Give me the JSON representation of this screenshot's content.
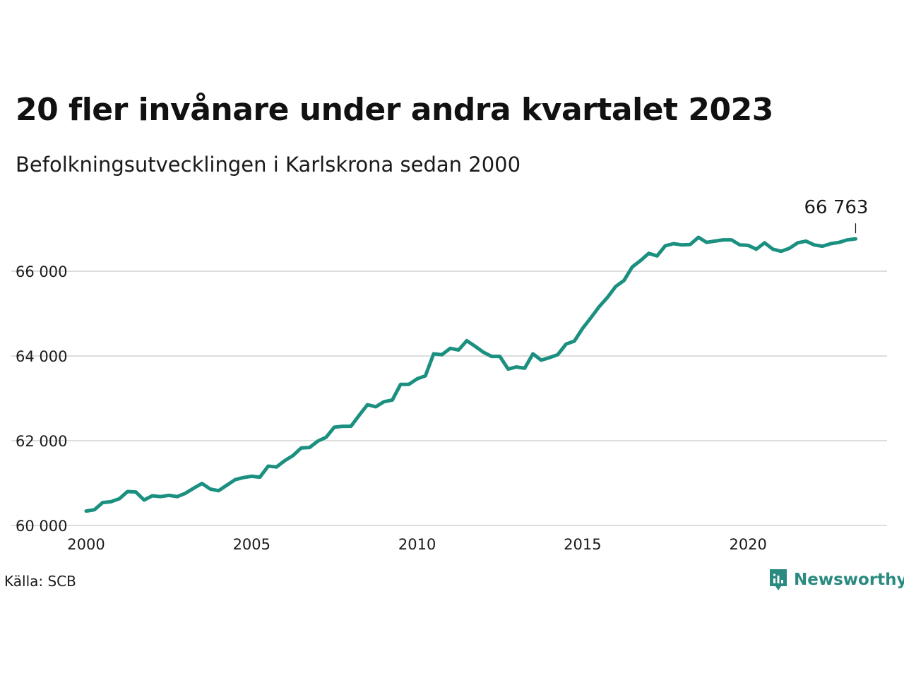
{
  "title": "20 fler invånare under andra kvartalet 2023",
  "subtitle": "Befolkningsutvecklingen i Karlskrona sedan 2000",
  "source": "Källa: SCB",
  "brand": "Newsworthy",
  "colors": {
    "line": "#1b9080",
    "grid": "#dddddd",
    "brand": "#2a8a80"
  },
  "chart_data": {
    "type": "line",
    "title": "20 fler invånare under andra kvartalet 2023",
    "subtitle": "Befolkningsutvecklingen i Karlskrona sedan 2000",
    "xlabel": "",
    "ylabel": "",
    "xlim": [
      2000,
      2024.2
    ],
    "ylim": [
      60000,
      67200
    ],
    "grid": "horizontal",
    "x_ticks": [
      2000,
      2005,
      2010,
      2015,
      2020
    ],
    "x_tick_labels": [
      "2000",
      "2005",
      "2010",
      "2015",
      "2020"
    ],
    "y_ticks": [
      60000,
      62000,
      64000,
      66000
    ],
    "y_tick_labels": [
      "60 000",
      "62 000",
      "64 000",
      "66 000"
    ],
    "end_label": "66 763",
    "series": [
      {
        "x": [
          2000.0,
          2000.25,
          2000.5,
          2000.75,
          2001.0,
          2001.25,
          2001.5,
          2001.75,
          2002.0,
          2002.25,
          2002.5,
          2002.75,
          2003.0,
          2003.25,
          2003.5,
          2003.75,
          2004.0,
          2004.25,
          2004.5,
          2004.75,
          2005.0,
          2005.25,
          2005.5,
          2005.75,
          2006.0,
          2006.25,
          2006.5,
          2006.75,
          2007.0,
          2007.25,
          2007.5,
          2007.75,
          2008.0,
          2008.25,
          2008.5,
          2008.75,
          2009.0,
          2009.25,
          2009.5,
          2009.75,
          2010.0,
          2010.25,
          2010.5,
          2010.75,
          2011.0,
          2011.25,
          2011.5,
          2011.75,
          2012.0,
          2012.25,
          2012.5,
          2012.75,
          2013.0,
          2013.25,
          2013.5,
          2013.75,
          2014.0,
          2014.25,
          2014.5,
          2014.75,
          2015.0,
          2015.25,
          2015.5,
          2015.75,
          2016.0,
          2016.25,
          2016.5,
          2016.75,
          2017.0,
          2017.25,
          2017.5,
          2017.75,
          2018.0,
          2018.25,
          2018.5,
          2018.75,
          2019.0,
          2019.25,
          2019.5,
          2019.75,
          2020.0,
          2020.25,
          2020.5,
          2020.75,
          2021.0,
          2021.25,
          2021.5,
          2021.75,
          2022.0,
          2022.25,
          2022.5,
          2022.75,
          2023.0,
          2023.25
        ],
        "values": [
          60340,
          60370,
          60540,
          60560,
          60630,
          60800,
          60790,
          60600,
          60700,
          60680,
          60710,
          60680,
          60760,
          60880,
          60990,
          60860,
          60820,
          60950,
          61080,
          61130,
          61160,
          61140,
          61400,
          61380,
          61530,
          61650,
          61830,
          61840,
          61990,
          62080,
          62320,
          62340,
          62340,
          62600,
          62850,
          62800,
          62920,
          62960,
          63330,
          63330,
          63460,
          63530,
          64050,
          64030,
          64180,
          64140,
          64360,
          64230,
          64090,
          63990,
          63990,
          63690,
          63740,
          63710,
          64050,
          63900,
          63960,
          64030,
          64280,
          64350,
          64650,
          64900,
          65160,
          65380,
          65640,
          65780,
          66100,
          66250,
          66420,
          66360,
          66600,
          66650,
          66620,
          66630,
          66800,
          66680,
          66710,
          66740,
          66740,
          66620,
          66610,
          66520,
          66670,
          66520,
          66470,
          66540,
          66670,
          66710,
          66620,
          66590,
          66650,
          66680,
          66740,
          66763
        ]
      }
    ]
  }
}
